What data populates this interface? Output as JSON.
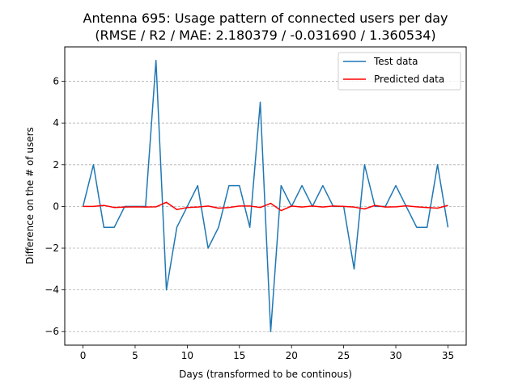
{
  "chart_data": {
    "type": "line",
    "title": "Antenna 695: Usage pattern of connected users per day",
    "subtitle": "(RMSE / R2 / MAE: 2.180379 / -0.031690 / 1.360534)",
    "xlabel": "Days (transformed to be continous)",
    "ylabel": "Difference on the # of users",
    "xlim": [
      -1.75,
      36.75
    ],
    "ylim": [
      -6.65,
      7.65
    ],
    "xticks": [
      0,
      5,
      10,
      15,
      20,
      25,
      30,
      35
    ],
    "yticks": [
      -6,
      -4,
      -2,
      0,
      2,
      4,
      6
    ],
    "grid": "y-dashed",
    "legend_position": "top-right",
    "x": [
      0,
      1,
      2,
      3,
      4,
      5,
      6,
      7,
      8,
      9,
      10,
      11,
      12,
      13,
      14,
      15,
      16,
      17,
      18,
      19,
      20,
      21,
      22,
      23,
      24,
      25,
      26,
      27,
      28,
      29,
      30,
      31,
      32,
      33,
      34,
      35
    ],
    "series": [
      {
        "name": "Test data",
        "color": "#1f77b4",
        "values": [
          0,
          2,
          -1,
          -1,
          0,
          0,
          0,
          7,
          -4,
          -1,
          0,
          1,
          -2,
          -1,
          1,
          1,
          -1,
          5,
          -6,
          1,
          0,
          1,
          0,
          1,
          0,
          0,
          -3,
          2,
          0,
          0,
          1,
          0,
          -1,
          -1,
          2,
          -1
        ]
      },
      {
        "name": "Predicted data",
        "color": "#ff0000",
        "values": [
          0,
          0,
          0.05,
          -0.05,
          -0.03,
          -0.02,
          -0.03,
          -0.02,
          0.2,
          -0.15,
          -0.05,
          -0.03,
          0.02,
          -0.08,
          -0.05,
          0.02,
          0.02,
          -0.05,
          0.15,
          -0.2,
          0.02,
          -0.03,
          0.02,
          -0.03,
          0.02,
          0,
          -0.03,
          -0.12,
          0.05,
          -0.03,
          -0.02,
          0.03,
          -0.02,
          -0.05,
          -0.08,
          0.05
        ]
      }
    ]
  }
}
